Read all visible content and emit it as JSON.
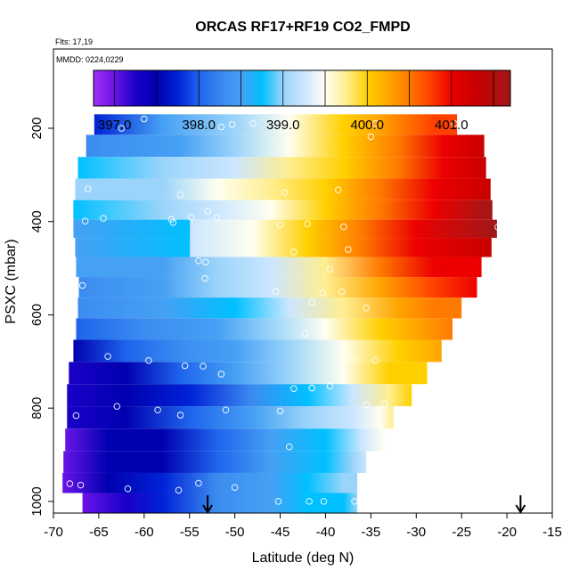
{
  "chart_data": {
    "type": "heatmap",
    "title": "ORCAS RF17+RF19 CO2_FMPD",
    "flights_note": "Flts: 17,19",
    "date_note": "MMDD: 0224,0229",
    "xlabel": "Latitude (deg N)",
    "ylabel": "PSXC (mbar)",
    "xlim": [
      -70,
      -15
    ],
    "ylim": [
      1025,
      30
    ],
    "x_ticks": [
      -70,
      -65,
      -60,
      -55,
      -50,
      -45,
      -40,
      -35,
      -30,
      -25,
      -20,
      -15
    ],
    "x_tick_labels": [
      "-70",
      "-65",
      "-60",
      "-55",
      "-50",
      "-45",
      "-40",
      "-35",
      "-30",
      "-25",
      "-20",
      "-15"
    ],
    "y_ticks": [
      200,
      400,
      600,
      800,
      1000
    ],
    "y_tick_labels": [
      "200",
      "400",
      "600",
      "800",
      "1000"
    ],
    "colorbar": {
      "min": 396.75,
      "max": 401.7,
      "ticks": [
        397.0,
        398.0,
        399.0,
        400.0,
        401.0
      ],
      "tick_labels": [
        "397.0",
        "398.0",
        "399.0",
        "400.0",
        "401.0"
      ],
      "gradient": [
        [
          396.75,
          "#a030f0"
        ],
        [
          397.0,
          "#6a14e8"
        ],
        [
          397.25,
          "#1a00c8"
        ],
        [
          397.5,
          "#0000b0"
        ],
        [
          397.75,
          "#0022d6"
        ],
        [
          398.0,
          "#1e64ec"
        ],
        [
          398.3,
          "#3c8cf0"
        ],
        [
          398.5,
          "#46a0f4"
        ],
        [
          398.75,
          "#00c0ff"
        ],
        [
          399.0,
          "#9ad4fa"
        ],
        [
          399.25,
          "#cce6ff"
        ],
        [
          399.5,
          "#fffff0"
        ],
        [
          399.75,
          "#ffee90"
        ],
        [
          400.0,
          "#ffd000"
        ],
        [
          400.25,
          "#ffa500"
        ],
        [
          400.5,
          "#ff7a00"
        ],
        [
          400.75,
          "#ff4000"
        ],
        [
          401.0,
          "#ec0000"
        ],
        [
          401.3,
          "#c80000"
        ],
        [
          401.7,
          "#a01818"
        ]
      ]
    },
    "pressure_bands": [
      {
        "p": 190,
        "lat_start": -65.5,
        "lat_end": -25.5,
        "stops": [
          [
            -65.5,
            397.7
          ],
          [
            -58,
            398.4
          ],
          [
            -50,
            398.9
          ],
          [
            -44,
            399.3
          ],
          [
            -38,
            399.8
          ],
          [
            -34,
            400.2
          ],
          [
            -28,
            400.6
          ],
          [
            -25.5,
            400.7
          ]
        ]
      },
      {
        "p": 238,
        "lat_start": -66.4,
        "lat_end": -22.5,
        "stops": [
          [
            -66.4,
            398.2
          ],
          [
            -56,
            398.5
          ],
          [
            -50,
            399.0
          ],
          [
            -44,
            399.5
          ],
          [
            -38,
            400.0
          ],
          [
            -32,
            400.5
          ],
          [
            -27,
            400.9
          ],
          [
            -22.5,
            401.2
          ]
        ]
      },
      {
        "p": 285,
        "lat_start": -67.3,
        "lat_end": -22.3,
        "stops": [
          [
            -67.3,
            398.6
          ],
          [
            -58,
            398.8
          ],
          [
            -50,
            399.2
          ],
          [
            -44,
            399.6
          ],
          [
            -38,
            400.0
          ],
          [
            -32,
            400.5
          ],
          [
            -27,
            400.9
          ],
          [
            -22.3,
            401.2
          ]
        ]
      },
      {
        "p": 331,
        "lat_start": -67.6,
        "lat_end": -21.8,
        "stops": [
          [
            -67.6,
            399.0
          ],
          [
            -58,
            399.0
          ],
          [
            -52,
            399.3
          ],
          [
            -46,
            399.6
          ],
          [
            -40,
            400.0
          ],
          [
            -34,
            400.4
          ],
          [
            -28,
            400.8
          ],
          [
            -21.8,
            401.2
          ]
        ]
      },
      {
        "p": 377,
        "lat_start": -67.8,
        "lat_end": -21.6,
        "stops": [
          [
            -67.8,
            398.6
          ],
          [
            -58,
            398.8
          ],
          [
            -52,
            399.2
          ],
          [
            -46,
            399.5
          ],
          [
            -40,
            400.0
          ],
          [
            -34,
            400.5
          ],
          [
            -28,
            401.0
          ],
          [
            -21.6,
            401.4
          ]
        ]
      },
      {
        "p": 415,
        "lat_start": -67.8,
        "lat_end": -21.1,
        "stops": [
          [
            -67.8,
            398.5
          ],
          [
            -55,
            398.7
          ],
          [
            -54.9,
            399.1
          ],
          [
            -48,
            399.5
          ],
          [
            -42,
            399.9
          ],
          [
            -36,
            400.5
          ],
          [
            -30,
            401.0
          ],
          [
            -21.1,
            401.5
          ]
        ]
      },
      {
        "p": 455,
        "lat_start": -67.6,
        "lat_end": -21.7,
        "stops": [
          [
            -67.6,
            398.4
          ],
          [
            -55,
            398.6
          ],
          [
            -54.9,
            399.1
          ],
          [
            -48,
            399.5
          ],
          [
            -42,
            399.9
          ],
          [
            -36,
            400.5
          ],
          [
            -30,
            401.0
          ],
          [
            -21.7,
            401.3
          ]
        ]
      },
      {
        "p": 497,
        "lat_start": -67.5,
        "lat_end": -22.8,
        "stops": [
          [
            -67.5,
            398.4
          ],
          [
            -58,
            398.5
          ],
          [
            -52,
            398.8
          ],
          [
            -46,
            399.2
          ],
          [
            -40,
            399.7
          ],
          [
            -34,
            400.3
          ],
          [
            -28,
            400.8
          ],
          [
            -22.8,
            401.0
          ]
        ]
      },
      {
        "p": 541,
        "lat_start": -67.2,
        "lat_end": -23.3,
        "stops": [
          [
            -67.2,
            398.3
          ],
          [
            -58,
            398.5
          ],
          [
            -52,
            398.8
          ],
          [
            -46,
            399.2
          ],
          [
            -40,
            399.6
          ],
          [
            -34,
            400.2
          ],
          [
            -28,
            400.6
          ],
          [
            -23.3,
            400.9
          ]
        ]
      },
      {
        "p": 585,
        "lat_start": -67.3,
        "lat_end": -25.0,
        "stops": [
          [
            -67.3,
            398.3
          ],
          [
            -58,
            398.4
          ],
          [
            -50,
            398.7
          ],
          [
            -44,
            399.1
          ],
          [
            -38,
            399.6
          ],
          [
            -32,
            400.1
          ],
          [
            -28,
            400.4
          ],
          [
            -25,
            400.5
          ]
        ]
      },
      {
        "p": 630,
        "lat_start": -67.5,
        "lat_end": -26.0,
        "stops": [
          [
            -67.5,
            397.8
          ],
          [
            -60,
            398.2
          ],
          [
            -52,
            398.5
          ],
          [
            -46,
            398.9
          ],
          [
            -40,
            399.4
          ],
          [
            -34,
            399.9
          ],
          [
            -30,
            400.2
          ],
          [
            -26,
            400.3
          ]
        ]
      },
      {
        "p": 677,
        "lat_start": -67.8,
        "lat_end": -27.2,
        "stops": [
          [
            -67.8,
            397.3
          ],
          [
            -62,
            397.8
          ],
          [
            -56,
            398.2
          ],
          [
            -50,
            398.5
          ],
          [
            -44,
            398.9
          ],
          [
            -38,
            399.5
          ],
          [
            -32,
            399.9
          ],
          [
            -27.2,
            400.2
          ]
        ]
      },
      {
        "p": 725,
        "lat_start": -68.3,
        "lat_end": -28.8,
        "stops": [
          [
            -68.3,
            397.2
          ],
          [
            -62,
            397.5
          ],
          [
            -56,
            397.9
          ],
          [
            -50,
            398.4
          ],
          [
            -44,
            398.8
          ],
          [
            -38,
            399.3
          ],
          [
            -33,
            399.8
          ],
          [
            -28.8,
            400.0
          ]
        ]
      },
      {
        "p": 772,
        "lat_start": -68.5,
        "lat_end": -30.5,
        "stops": [
          [
            -68.5,
            397.1
          ],
          [
            -62,
            397.3
          ],
          [
            -55,
            397.6
          ],
          [
            -48,
            398.3
          ],
          [
            -42,
            398.7
          ],
          [
            -37,
            399.2
          ],
          [
            -33,
            399.6
          ],
          [
            -30.5,
            399.8
          ]
        ]
      },
      {
        "p": 820,
        "lat_start": -68.5,
        "lat_end": -32.5,
        "stops": [
          [
            -68.5,
            397.2
          ],
          [
            -62,
            397.4
          ],
          [
            -55,
            397.9
          ],
          [
            -48,
            398.4
          ],
          [
            -42,
            398.8
          ],
          [
            -37,
            399.2
          ],
          [
            -34,
            399.5
          ],
          [
            -32.5,
            399.7
          ]
        ]
      },
      {
        "p": 868,
        "lat_start": -68.7,
        "lat_end": -33.5,
        "stops": [
          [
            -68.7,
            397.0
          ],
          [
            -64,
            397.3
          ],
          [
            -58,
            397.5
          ],
          [
            -52,
            398.0
          ],
          [
            -46,
            398.4
          ],
          [
            -40,
            398.7
          ],
          [
            -36,
            399.1
          ],
          [
            -33.5,
            399.3
          ]
        ]
      },
      {
        "p": 916,
        "lat_start": -68.9,
        "lat_end": -35.5,
        "stops": [
          [
            -68.9,
            397.0
          ],
          [
            -64,
            397.3
          ],
          [
            -58,
            397.5
          ],
          [
            -52,
            398.0
          ],
          [
            -46,
            398.4
          ],
          [
            -40,
            398.7
          ],
          [
            -37,
            399.0
          ],
          [
            -35.5,
            399.1
          ]
        ]
      },
      {
        "p": 962,
        "lat_start": -69.0,
        "lat_end": -36.5,
        "stops": [
          [
            -69.0,
            397.0
          ],
          [
            -64,
            397.4
          ],
          [
            -58,
            397.7
          ],
          [
            -52,
            398.1
          ],
          [
            -46,
            398.4
          ],
          [
            -42,
            398.6
          ],
          [
            -38,
            398.8
          ],
          [
            -36.5,
            398.9
          ]
        ]
      },
      {
        "p": 1002,
        "lat_start": -66.8,
        "lat_end": -36.5,
        "stops": [
          [
            -66.8,
            396.9
          ],
          [
            -62,
            397.2
          ],
          [
            -58,
            397.6
          ],
          [
            -52,
            398.1
          ],
          [
            -46,
            398.4
          ],
          [
            -42,
            398.6
          ],
          [
            -38,
            398.7
          ],
          [
            -36.5,
            398.8
          ]
        ]
      }
    ],
    "sample_points": [
      [
        -60,
        180
      ],
      [
        -62.5,
        200
      ],
      [
        -51.5,
        197
      ],
      [
        -50.3,
        192
      ],
      [
        -48,
        190
      ],
      [
        -34.5,
        190
      ],
      [
        -25.8,
        190
      ],
      [
        -35,
        218
      ],
      [
        -22,
        217
      ],
      [
        -66.2,
        330
      ],
      [
        -56,
        343
      ],
      [
        -44.5,
        338
      ],
      [
        -38.6,
        332
      ],
      [
        -66.5,
        399
      ],
      [
        -64.5,
        393
      ],
      [
        -56.8,
        402
      ],
      [
        -57,
        395
      ],
      [
        -54.8,
        391
      ],
      [
        -52,
        391
      ],
      [
        -53,
        378
      ],
      [
        -38,
        411
      ],
      [
        -45,
        407
      ],
      [
        -42,
        405
      ],
      [
        -21,
        412
      ],
      [
        -20.3,
        438
      ],
      [
        -54,
        484
      ],
      [
        -53.2,
        487
      ],
      [
        -43.5,
        465
      ],
      [
        -37.5,
        460
      ],
      [
        -39.5,
        502
      ],
      [
        -53.3,
        522
      ],
      [
        -66.8,
        537
      ],
      [
        -45.5,
        550
      ],
      [
        -40.3,
        553
      ],
      [
        -41.5,
        573
      ],
      [
        -38.2,
        550
      ],
      [
        -35.5,
        585
      ],
      [
        -42.3,
        640
      ],
      [
        -64,
        689
      ],
      [
        -59.5,
        698
      ],
      [
        -55.5,
        709
      ],
      [
        -53.5,
        710
      ],
      [
        -51.5,
        727
      ],
      [
        -43.5,
        758
      ],
      [
        -41.5,
        757
      ],
      [
        -39.5,
        753
      ],
      [
        -37,
        698
      ],
      [
        -34.5,
        698
      ],
      [
        -35.5,
        793
      ],
      [
        -33.5,
        790
      ],
      [
        -63,
        796
      ],
      [
        -58.5,
        804
      ],
      [
        -56,
        815
      ],
      [
        -51,
        804
      ],
      [
        -45,
        806
      ],
      [
        -67.5,
        816
      ],
      [
        -44,
        883
      ],
      [
        -68.2,
        962
      ],
      [
        -67,
        965
      ],
      [
        -61.8,
        973
      ],
      [
        -56.2,
        976
      ],
      [
        -54,
        961
      ],
      [
        -50,
        970
      ],
      [
        -45.2,
        1000
      ],
      [
        -41.8,
        1000
      ],
      [
        -40.2,
        1000
      ],
      [
        -36.8,
        1000
      ]
    ],
    "flight_markers_lat": [
      -53,
      -18.5
    ]
  }
}
